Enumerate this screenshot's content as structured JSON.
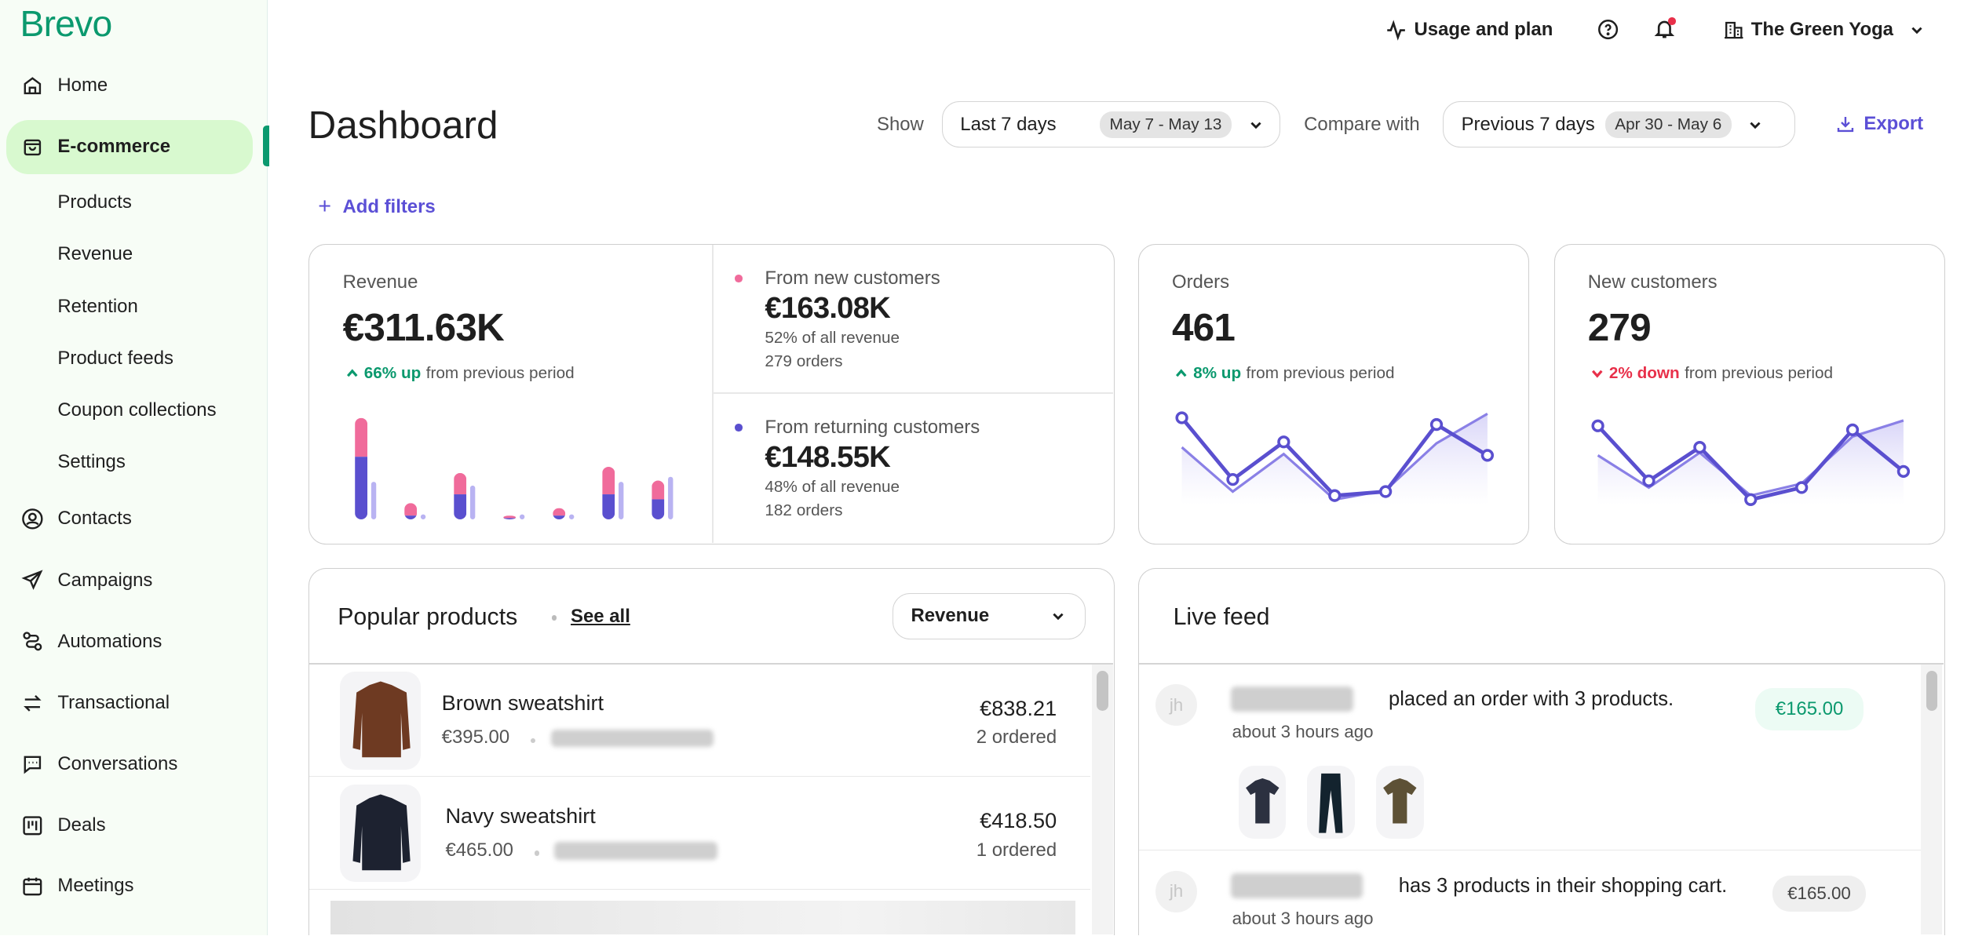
{
  "brand": {
    "logo": "Brevo",
    "color": "#0b996e"
  },
  "sidebar": {
    "items": [
      {
        "label": "Home",
        "icon": "home-icon"
      },
      {
        "label": "E-commerce",
        "icon": "shopping-bag-icon",
        "active": true,
        "children": [
          "Products",
          "Revenue",
          "Retention",
          "Product feeds",
          "Coupon collections",
          "Settings"
        ]
      },
      {
        "label": "Contacts",
        "icon": "contact-icon"
      },
      {
        "label": "Campaigns",
        "icon": "send-icon"
      },
      {
        "label": "Automations",
        "icon": "automation-icon"
      },
      {
        "label": "Transactional",
        "icon": "arrows-swap-icon"
      },
      {
        "label": "Conversations",
        "icon": "chat-icon"
      },
      {
        "label": "Deals",
        "icon": "kanban-icon"
      },
      {
        "label": "Meetings",
        "icon": "calendar-icon"
      }
    ]
  },
  "topbar": {
    "usage": "Usage and plan",
    "account": "The Green Yoga",
    "notification_dot_color": "#e8304a"
  },
  "header": {
    "title": "Dashboard",
    "show_label": "Show",
    "show_value": "Last 7 days",
    "show_range": "May 7 - May 13",
    "compare_label": "Compare with",
    "compare_value": "Previous 7 days",
    "compare_range": "Apr 30 - May 6",
    "export": "Export",
    "accent": "#5b4fd6",
    "add_filters": "Add filters"
  },
  "revenue": {
    "label": "Revenue",
    "value": "€311.63K",
    "change": "66% up",
    "change_suffix": "from previous period",
    "direction": "up",
    "new": {
      "label": "From new customers",
      "value": "€163.08K",
      "share": "52% of all revenue",
      "orders": "279 orders",
      "color": "#f06b9b"
    },
    "returning": {
      "label": "From returning customers",
      "value": "€148.55K",
      "share": "48% of all revenue",
      "orders": "182 orders",
      "color": "#5a4fcf"
    },
    "previous_color": "#b9b3f2",
    "chart": {
      "type": "bar",
      "stacked": true,
      "new": [
        31,
        10,
        17,
        2,
        6,
        22,
        15
      ],
      "returning": [
        50,
        3,
        20,
        1,
        3,
        20,
        16
      ],
      "previous": [
        30,
        2,
        27,
        3,
        3,
        30,
        34
      ]
    }
  },
  "orders": {
    "label": "Orders",
    "value": "461",
    "change": "8% up",
    "change_suffix": "from previous period",
    "direction": "up",
    "chart": {
      "type": "line",
      "current": [
        65,
        19,
        47,
        7,
        10,
        60,
        37
      ],
      "previous": [
        43,
        10,
        38,
        4,
        11,
        46,
        68
      ]
    }
  },
  "new_customers": {
    "label": "New customers",
    "value": "279",
    "change": "2% down",
    "change_suffix": "from previous period",
    "direction": "down",
    "chart": {
      "type": "line",
      "current": [
        59,
        18,
        43,
        4,
        13,
        56,
        25
      ],
      "previous": [
        37,
        13,
        39,
        7,
        16,
        51,
        63
      ]
    }
  },
  "popular": {
    "title": "Popular products",
    "see_all": "See all",
    "sort": "Revenue",
    "items": [
      {
        "name": "Brown sweatshirt",
        "price": "€395.00",
        "total": "€838.21",
        "ordered": "2 ordered",
        "color": "#6e3a22"
      },
      {
        "name": "Navy sweatshirt",
        "price": "€465.00",
        "total": "€418.50",
        "ordered": "1 ordered",
        "color": "#1d2230"
      }
    ]
  },
  "feed": {
    "title": "Live feed",
    "items": [
      {
        "avatar": "jh",
        "text": "placed an order with 3 products.",
        "time": "about 3 hours ago",
        "amount": "€165.00",
        "kind": "order",
        "products": [
          "#2c3140",
          "#13232e",
          "#5d5136"
        ]
      },
      {
        "avatar": "jh",
        "text": "has 3 products in their shopping cart.",
        "time": "about 3 hours ago",
        "amount": "€165.00",
        "kind": "cart"
      }
    ]
  }
}
